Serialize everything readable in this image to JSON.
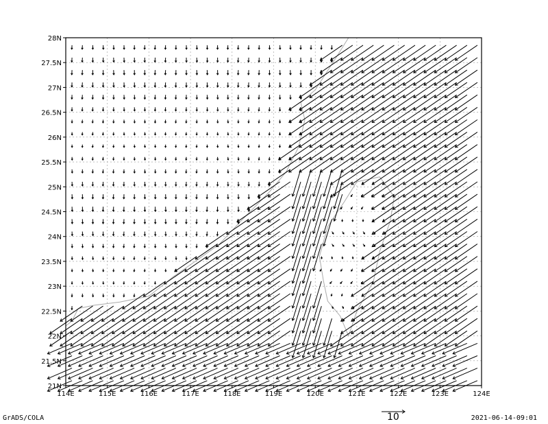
{
  "footer": {
    "left": "GrADS/COLA",
    "right": "2021-06-14-09:01"
  },
  "reference_vector": {
    "label": "10",
    "magnitude": 10
  },
  "colors": {
    "vectors": "#000000",
    "coastline": "#aaaaaa",
    "grid": "#999999",
    "frame": "#000000"
  },
  "chart_data": {
    "type": "vector_field",
    "title": "",
    "xlabel": "",
    "ylabel": "",
    "xlim": [
      114,
      124
    ],
    "ylim": [
      21,
      28
    ],
    "xticks": [
      "114E",
      "115E",
      "116E",
      "117E",
      "118E",
      "119E",
      "120E",
      "121E",
      "122E",
      "123E",
      "124E"
    ],
    "yticks": [
      "21N",
      "21.5N",
      "22N",
      "22.5N",
      "23N",
      "23.5N",
      "24N",
      "24.5N",
      "25N",
      "25.5N",
      "26N",
      "26.5N",
      "27N",
      "27.5N",
      "28N"
    ],
    "grid": "dotted",
    "grid_spacing_deg": [
      0.25,
      0.25
    ],
    "description_of_flow": "Strong northeasterly flow over the Taiwan Strait and open ocean (~10-13 m/s); weak southerly/northerly winds over mainland China and Taiwan interior.",
    "coastline_mainland": [
      [
        114,
        22.2
      ],
      [
        114.15,
        22.3
      ],
      [
        114.3,
        22.55
      ],
      [
        114.7,
        22.62
      ],
      [
        115.3,
        22.68
      ],
      [
        116.0,
        22.8
      ],
      [
        116.6,
        23.2
      ],
      [
        117.2,
        23.55
      ],
      [
        117.7,
        23.85
      ],
      [
        118.2,
        24.3
      ],
      [
        118.55,
        24.6
      ],
      [
        118.9,
        24.9
      ],
      [
        119.3,
        25.3
      ],
      [
        119.6,
        25.8
      ],
      [
        119.75,
        26.35
      ],
      [
        119.65,
        26.7
      ],
      [
        120.0,
        26.95
      ],
      [
        120.5,
        27.6
      ],
      [
        120.8,
        28.0
      ]
    ],
    "coastline_taiwan": [
      [
        121.55,
        25.2
      ],
      [
        121.9,
        24.8
      ],
      [
        121.8,
        24.3
      ],
      [
        121.55,
        23.7
      ],
      [
        121.4,
        23.1
      ],
      [
        121.0,
        22.5
      ],
      [
        120.8,
        22.0
      ],
      [
        120.6,
        22.4
      ],
      [
        120.3,
        22.7
      ],
      [
        120.2,
        23.1
      ],
      [
        120.1,
        23.6
      ],
      [
        120.3,
        24.2
      ],
      [
        120.7,
        24.7
      ],
      [
        121.0,
        25.1
      ],
      [
        121.55,
        25.2
      ]
    ]
  }
}
